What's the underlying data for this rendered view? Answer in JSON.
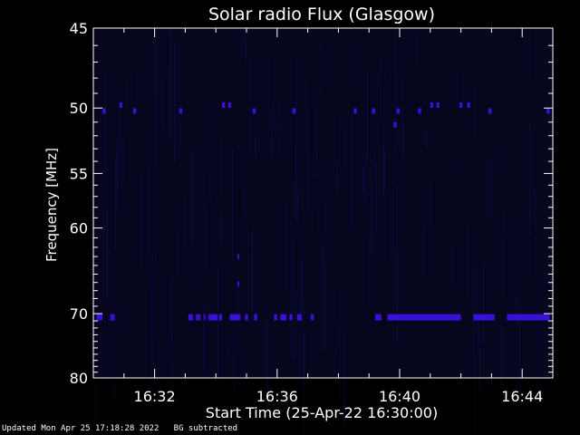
{
  "chart_data": {
    "type": "heatmap",
    "title": "Solar radio Flux (Glasgow)",
    "xlabel": "Start Time (25-Apr-22 16:30:00)",
    "ylabel": "Frequency [MHz]",
    "x_unit": "minutes after 16:30",
    "xlim": [
      0,
      15
    ],
    "ylim": [
      45,
      80
    ],
    "y_scale": "reciprocal",
    "y_inverted": true,
    "y_ticks": [
      45,
      50,
      55,
      60,
      70,
      80
    ],
    "y_tick_labels": [
      "45",
      "50",
      "55",
      "60",
      "70",
      "80"
    ],
    "x_ticks": [
      2,
      6,
      10,
      14
    ],
    "x_tick_labels": [
      "16:32",
      "16:36",
      "16:40",
      "16:44"
    ],
    "background_color": "#06061e",
    "emission_color": "#3a10d8",
    "bands": [
      {
        "frequency_mhz": 70.5,
        "intervals": [
          [
            0.1,
            0.3
          ],
          [
            0.55,
            0.7
          ],
          [
            3.1,
            3.25
          ],
          [
            3.35,
            3.5
          ],
          [
            3.6,
            3.65
          ],
          [
            3.75,
            4.05
          ],
          [
            4.1,
            4.2
          ],
          [
            4.45,
            4.8
          ],
          [
            4.95,
            5.05
          ],
          [
            5.25,
            5.35
          ],
          [
            5.9,
            6.0
          ],
          [
            6.1,
            6.3
          ],
          [
            6.4,
            6.5
          ],
          [
            6.65,
            6.8
          ],
          [
            7.1,
            7.2
          ],
          [
            9.2,
            9.4
          ],
          [
            9.6,
            12.0
          ],
          [
            12.4,
            13.1
          ],
          [
            13.5,
            14.9
          ]
        ]
      },
      {
        "frequency_mhz": 49.8,
        "intervals": [
          [
            0.85,
            0.95
          ],
          [
            4.2,
            4.3
          ],
          [
            4.4,
            4.5
          ],
          [
            11.0,
            11.1
          ],
          [
            11.2,
            11.3
          ],
          [
            11.95,
            12.05
          ],
          [
            12.2,
            12.3
          ]
        ]
      },
      {
        "frequency_mhz": 50.2,
        "intervals": [
          [
            0.3,
            0.4
          ],
          [
            1.3,
            1.4
          ],
          [
            2.8,
            2.9
          ],
          [
            5.2,
            5.3
          ],
          [
            6.5,
            6.6
          ],
          [
            8.5,
            8.6
          ],
          [
            9.1,
            9.2
          ],
          [
            9.9,
            10.0
          ],
          [
            10.6,
            10.7
          ],
          [
            12.9,
            13.0
          ],
          [
            14.8,
            14.9
          ]
        ]
      },
      {
        "frequency_mhz": 51.2,
        "intervals": [
          [
            9.8,
            9.9
          ]
        ]
      },
      {
        "frequency_mhz": 66.2,
        "intervals": [
          [
            4.7,
            4.75
          ]
        ]
      },
      {
        "frequency_mhz": 63.0,
        "intervals": [
          [
            4.7,
            4.75
          ]
        ]
      }
    ]
  },
  "footer": {
    "updated": "Updated Mon Apr 25 17:18:28 2022",
    "note": "BG subtracted"
  }
}
